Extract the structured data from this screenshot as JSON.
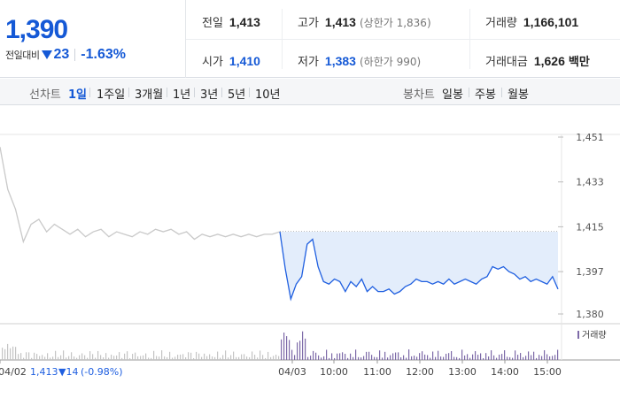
{
  "current_price": "1,390",
  "change_label": "전일대비",
  "change_value": "23",
  "change_rate": "-1.63%",
  "direction": "down",
  "stats": {
    "prev_close": {
      "label": "전일",
      "value": "1,413"
    },
    "high": {
      "label": "고가",
      "value": "1,413",
      "note": "(상한가 1,836)"
    },
    "volume": {
      "label": "거래량",
      "value": "1,166,101"
    },
    "open": {
      "label": "시가",
      "value": "1,410"
    },
    "low": {
      "label": "저가",
      "value": "1,383",
      "note": "(하한가 990)"
    },
    "trade_value": {
      "label": "거래대금",
      "value": "1,626",
      "unit": "백만"
    }
  },
  "line_chart_tabs": {
    "label": "선차트",
    "items": [
      {
        "label": "1일",
        "active": true
      },
      {
        "label": "1주일",
        "active": false
      },
      {
        "label": "3개월",
        "active": false
      },
      {
        "label": "1년",
        "active": false
      },
      {
        "label": "3년",
        "active": false
      },
      {
        "label": "5년",
        "active": false
      },
      {
        "label": "10년",
        "active": false
      }
    ]
  },
  "candle_chart_tabs": {
    "label": "봉차트",
    "items": [
      {
        "label": "일봉"
      },
      {
        "label": "주봉"
      },
      {
        "label": "월봉"
      }
    ]
  },
  "colors": {
    "down": "#1559d6",
    "line_today": "#1f5fe0",
    "fill_today": "#e3edfb",
    "line_prev": "#c9c9c9",
    "volume_today": "#7d6aa8",
    "volume_prev": "#c4c4c4"
  },
  "chart_data": {
    "type": "line",
    "y_ticks": [
      "1,451",
      "1,433",
      "1,415",
      "1,397",
      "1,380"
    ],
    "ylim": [
      1380,
      1451
    ],
    "prev_close": 1413,
    "x_labels": [
      "04/02",
      "04/03",
      "10:00",
      "11:00",
      "12:00",
      "13:00",
      "14:00",
      "15:00"
    ],
    "prev_day_info": {
      "date": "04/02",
      "price": "1,413",
      "change": "▼14",
      "rate": "(-0.98%)"
    },
    "volume_legend": "거래량",
    "series": [
      {
        "day": "04/02",
        "values": [
          1447,
          1430,
          1422,
          1409,
          1416,
          1418,
          1413,
          1416,
          1414,
          1412,
          1414,
          1411,
          1413,
          1414,
          1411,
          1413,
          1412,
          1411,
          1413,
          1412,
          1414,
          1413,
          1414,
          1412,
          1413,
          1410,
          1412,
          1411,
          1412,
          1411,
          1412,
          1411,
          1412,
          1411,
          1412,
          1412,
          1413
        ]
      },
      {
        "day": "04/03",
        "values": [
          1413,
          1398,
          1386,
          1392,
          1395,
          1408,
          1410,
          1399,
          1393,
          1392,
          1394,
          1393,
          1389,
          1393,
          1391,
          1394,
          1389,
          1391,
          1389,
          1389,
          1390,
          1388,
          1389,
          1391,
          1392,
          1394,
          1393,
          1393,
          1392,
          1393,
          1392,
          1394,
          1392,
          1393,
          1394,
          1393,
          1392,
          1394,
          1395,
          1399,
          1398,
          1399,
          1397,
          1396,
          1394,
          1395,
          1393,
          1394,
          1393,
          1392,
          1395,
          1390
        ]
      }
    ]
  }
}
